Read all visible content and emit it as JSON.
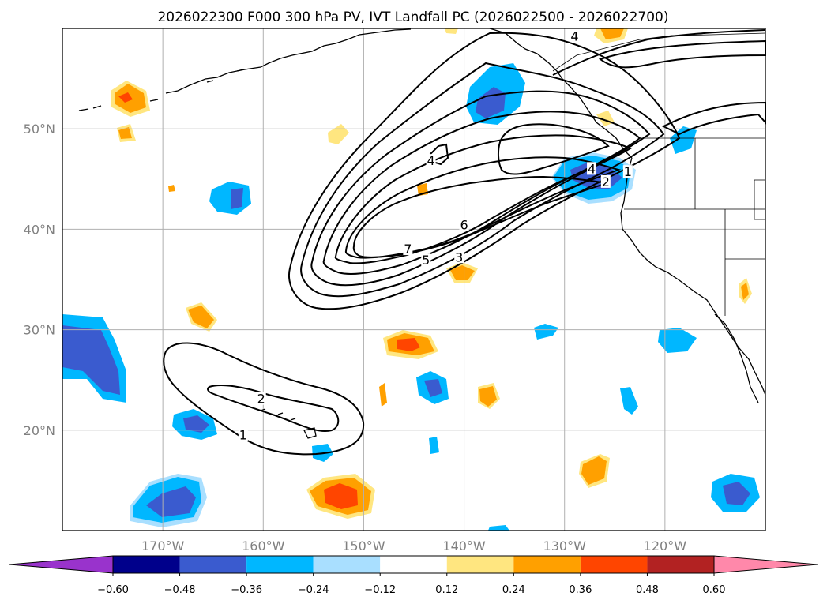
{
  "title": "2026022300 F000 300 hPa PV, IVT Landfall PC (2026022500 - 2026022700)",
  "map": {
    "lon_range": [
      -180,
      -110
    ],
    "lat_range": [
      10,
      60
    ],
    "lat_ticks": [
      {
        "value": 50,
        "label": "50°N"
      },
      {
        "value": 40,
        "label": "40°N"
      },
      {
        "value": 30,
        "label": "30°N"
      },
      {
        "value": 20,
        "label": "20°N"
      }
    ],
    "lon_ticks": [
      {
        "value": -170,
        "label": "170°W"
      },
      {
        "value": -160,
        "label": "160°W"
      },
      {
        "value": -150,
        "label": "150°W"
      },
      {
        "value": -140,
        "label": "140°W"
      },
      {
        "value": -130,
        "label": "130°W"
      },
      {
        "value": -120,
        "label": "120°W"
      }
    ],
    "contour_labels": [
      {
        "text": "7",
        "lon": -145.6,
        "lat": 37.9
      },
      {
        "text": "5",
        "lon": -143.8,
        "lat": 36.8
      },
      {
        "text": "3",
        "lon": -140.5,
        "lat": 37.1
      },
      {
        "text": "6",
        "lon": -140.0,
        "lat": 40.3
      },
      {
        "text": "4",
        "lon": -143.3,
        "lat": 46.7
      },
      {
        "text": "4",
        "lon": -129.0,
        "lat": 59.1
      },
      {
        "text": "4",
        "lon": -127.3,
        "lat": 45.9
      },
      {
        "text": "2",
        "lon": -125.9,
        "lat": 44.6
      },
      {
        "text": "1",
        "lon": -123.7,
        "lat": 45.6
      },
      {
        "text": "2",
        "lon": -160.2,
        "lat": 23.0
      },
      {
        "text": "1",
        "lon": -162.0,
        "lat": 19.4
      }
    ]
  },
  "colorbar": {
    "levels": [
      -0.6,
      -0.48,
      -0.36,
      -0.24,
      -0.12,
      0.12,
      0.24,
      0.36,
      0.48,
      0.6
    ],
    "tick_labels": [
      "−0.60",
      "−0.48",
      "−0.36",
      "−0.24",
      "−0.12",
      "0.12",
      "0.24",
      "0.36",
      "0.48",
      "0.60"
    ],
    "colors": [
      "#9933cc",
      "#00008b",
      "#3a5bcf",
      "#00b7ff",
      "#a9dfff",
      "#ffffff",
      "#ffe680",
      "#ffa000",
      "#ff4500",
      "#b22222",
      "#ff88aa"
    ],
    "extend": "both"
  }
}
